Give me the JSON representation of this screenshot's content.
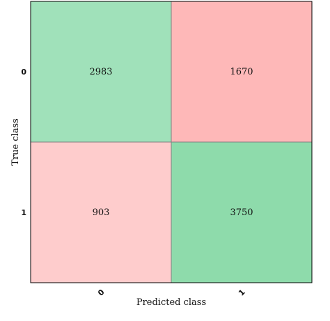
{
  "chart_data": {
    "type": "heatmap",
    "title": "",
    "xlabel": "Predicted class",
    "ylabel": "True class",
    "x_categories": [
      "0",
      "1"
    ],
    "y_categories": [
      "0",
      "1"
    ],
    "values": [
      [
        2983,
        1670
      ],
      [
        903,
        3750
      ]
    ],
    "colors": {
      "correct_high": "#8edbab",
      "correct_low": "#a0e1ba",
      "wrong_high": "#feb8b8",
      "wrong_low": "#fecccc",
      "grid": "#808080",
      "frame": "#000000"
    },
    "grid": true,
    "legend": "none"
  }
}
